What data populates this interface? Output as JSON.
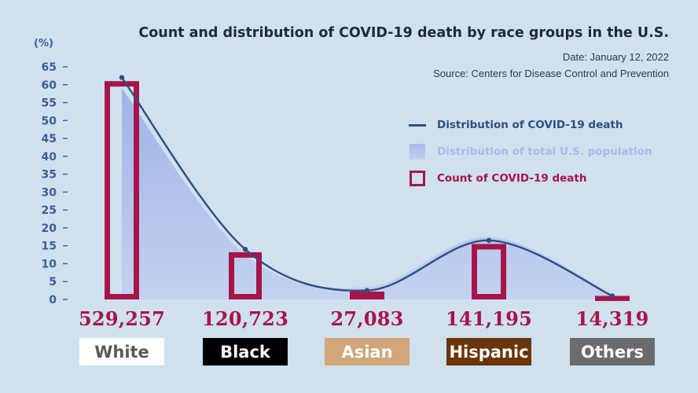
{
  "chart_data": {
    "type": "bar",
    "title": "Count and distribution of COVID-19 death by race groups in the U.S.",
    "subtitle": [
      "Date: January 12, 2022",
      "Source: Centers for Disease Control and Prevention"
    ],
    "ylabel": "(%)",
    "ylim": [
      0,
      65
    ],
    "yticks": [
      "0",
      "5",
      "10",
      "15",
      "20",
      "25",
      "30",
      "35",
      "40",
      "45",
      "50",
      "55",
      "60",
      "65"
    ],
    "categories": [
      "White",
      "Black",
      "Asian",
      "Hispanic",
      "Others"
    ],
    "category_colors": [
      "#ffffff",
      "#000000",
      "#d2a679",
      "#6b3409",
      "#6b6b6b"
    ],
    "category_text_colors": [
      "#5a5a5a",
      "#ffffff",
      "#ffffff",
      "#ffffff",
      "#ffffff"
    ],
    "series": [
      {
        "name": "Count of COVID-19 death",
        "kind": "bar-outline",
        "color": "#a81449",
        "values": [
          61,
          13.2,
          2.2,
          15.5,
          1.0
        ],
        "labels": [
          "529,257",
          "120,723",
          "27,083",
          "141,195",
          "14,319"
        ]
      },
      {
        "name": "Distribution of COVID-19 death",
        "kind": "line",
        "color": "#2f4f7f",
        "values": [
          62,
          14,
          2.5,
          16.5,
          1.0
        ]
      },
      {
        "name": "Distribution of total U.S. population",
        "kind": "area",
        "color": "#a7b9e7",
        "values": [
          59,
          12.5,
          3.5,
          17.5,
          1.5
        ]
      }
    ],
    "legend_position": "right",
    "grid": false
  }
}
